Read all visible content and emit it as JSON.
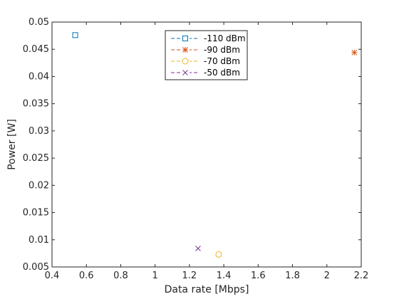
{
  "chart_data": {
    "type": "scatter",
    "title": "",
    "xlabel": "Data rate [Mbps]",
    "ylabel": "Power [W]",
    "xlim": [
      0.4,
      2.2
    ],
    "ylim": [
      0.005,
      0.05
    ],
    "xticks": [
      "0.4",
      "0.6",
      "0.8",
      "1",
      "1.2",
      "1.4",
      "1.6",
      "1.8",
      "2",
      "2.2"
    ],
    "yticks": [
      "0.005",
      "0.01",
      "0.015",
      "0.02",
      "0.025",
      "0.03",
      "0.035",
      "0.04",
      "0.045",
      "0.05"
    ],
    "grid": false,
    "legend_position": "top-center",
    "series": [
      {
        "name": "-110 dBm",
        "marker": "square",
        "color": "#0072BD",
        "x": [
          0.535
        ],
        "y": [
          0.0476
        ]
      },
      {
        "name": "-90 dBm",
        "marker": "asterisk",
        "color": "#D95319",
        "x": [
          2.16
        ],
        "y": [
          0.0444
        ]
      },
      {
        "name": "-70 dBm",
        "marker": "circle",
        "color": "#EDB120",
        "x": [
          1.37
        ],
        "y": [
          0.0073
        ]
      },
      {
        "name": "-50 dBm",
        "marker": "x",
        "color": "#7E2F8E",
        "x": [
          1.25
        ],
        "y": [
          0.0084
        ]
      }
    ]
  }
}
